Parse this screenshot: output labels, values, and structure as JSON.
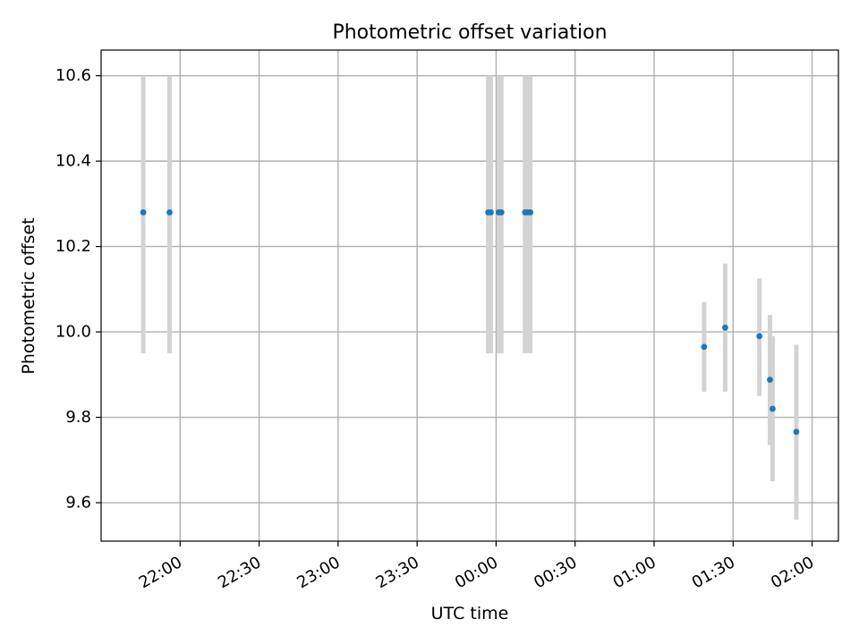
{
  "chart_data": {
    "type": "scatter",
    "title": "Photometric offset variation",
    "xlabel": "UTC time",
    "ylabel": "Photometric offset",
    "x_axis_type": "time",
    "xlim": [
      "21:30",
      "02:10"
    ],
    "ylim": [
      9.51,
      10.66
    ],
    "grid": true,
    "x_ticks": [
      "22:00",
      "22:30",
      "23:00",
      "23:30",
      "00:00",
      "00:30",
      "01:00",
      "01:30",
      "02:00"
    ],
    "y_ticks": [
      9.6,
      9.8,
      10.0,
      10.2,
      10.4,
      10.6
    ],
    "y_tick_labels": [
      "9.6",
      "9.8",
      "10.0",
      "10.2",
      "10.4",
      "10.6"
    ],
    "errorbar_color": "#d3d3d3",
    "marker_color": "#1f77b4",
    "points": [
      {
        "time": "21:46",
        "y": 10.28,
        "ylow": 9.95,
        "yhigh": 10.6
      },
      {
        "time": "21:56",
        "y": 10.28,
        "ylow": 9.95,
        "yhigh": 10.6
      },
      {
        "time": "23:57",
        "y": 10.28,
        "ylow": 9.95,
        "yhigh": 10.6
      },
      {
        "time": "23:58",
        "y": 10.28,
        "ylow": 9.95,
        "yhigh": 10.6
      },
      {
        "time": "00:01",
        "y": 10.28,
        "ylow": 9.95,
        "yhigh": 10.6
      },
      {
        "time": "00:02",
        "y": 10.28,
        "ylow": 9.95,
        "yhigh": 10.6
      },
      {
        "time": "00:11",
        "y": 10.28,
        "ylow": 9.95,
        "yhigh": 10.6
      },
      {
        "time": "00:12",
        "y": 10.28,
        "ylow": 9.95,
        "yhigh": 10.6
      },
      {
        "time": "00:13",
        "y": 10.28,
        "ylow": 9.95,
        "yhigh": 10.6
      },
      {
        "time": "01:19",
        "y": 9.965,
        "ylow": 9.86,
        "yhigh": 10.07
      },
      {
        "time": "01:27",
        "y": 10.01,
        "ylow": 9.86,
        "yhigh": 10.16
      },
      {
        "time": "01:40",
        "y": 9.99,
        "ylow": 9.85,
        "yhigh": 10.125
      },
      {
        "time": "01:44",
        "y": 9.888,
        "ylow": 9.735,
        "yhigh": 10.04
      },
      {
        "time": "01:45",
        "y": 9.82,
        "ylow": 9.65,
        "yhigh": 9.99
      },
      {
        "time": "01:54",
        "y": 9.766,
        "ylow": 9.56,
        "yhigh": 9.97
      }
    ]
  }
}
